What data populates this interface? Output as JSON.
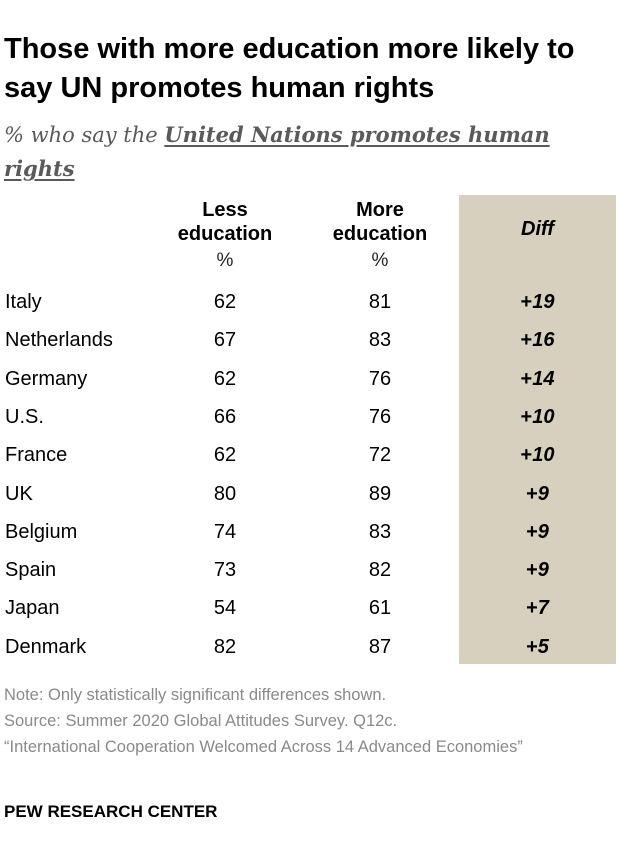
{
  "title": "Those with more education more likely to say UN promotes human rights",
  "subtitle": {
    "prefix": "% who say the ",
    "emphasis": "United Nations promotes human rights"
  },
  "columns": {
    "less_line1": "Less",
    "less_line2": "education",
    "more_line1": "More",
    "more_line2": "education",
    "pct": "%",
    "diff": "Diff"
  },
  "chart_data": {
    "type": "table",
    "title": "Those with more education more likely to say UN promotes human rights",
    "columns": [
      "Less education",
      "More education",
      "Diff"
    ],
    "unit": "%",
    "rows": [
      {
        "country": "Italy",
        "less": "62",
        "more": "81",
        "diff_sign": "+",
        "diff": "19"
      },
      {
        "country": "Netherlands",
        "less": "67",
        "more": "83",
        "diff_sign": "+",
        "diff": "16"
      },
      {
        "country": "Germany",
        "less": "62",
        "more": "76",
        "diff_sign": "+",
        "diff": "14"
      },
      {
        "country": "U.S.",
        "less": "66",
        "more": "76",
        "diff_sign": "+",
        "diff": "10"
      },
      {
        "country": "France",
        "less": "62",
        "more": "72",
        "diff_sign": "+",
        "diff": "10"
      },
      {
        "country": "UK",
        "less": "80",
        "more": "89",
        "diff_sign": "+",
        "diff": "9"
      },
      {
        "country": "Belgium",
        "less": "74",
        "more": "83",
        "diff_sign": "+",
        "diff": "9"
      },
      {
        "country": "Spain",
        "less": "73",
        "more": "82",
        "diff_sign": "+",
        "diff": "9"
      },
      {
        "country": "Japan",
        "less": "54",
        "more": "61",
        "diff_sign": "+",
        "diff": "7"
      },
      {
        "country": "Denmark",
        "less": "82",
        "more": "87",
        "diff_sign": "+",
        "diff": "5"
      }
    ]
  },
  "notes": {
    "note": "Note: Only statistically significant differences shown.",
    "source": "Source: Summer 2020 Global Attitudes Survey. Q12c.",
    "report": "“International Cooperation Welcomed Across 14 Advanced Economies”"
  },
  "brand": "PEW RESEARCH CENTER",
  "colors": {
    "diff_column_bg": "#d8d0bf",
    "subtitle": "#5a5a5a",
    "note": "#8a8a8a"
  }
}
